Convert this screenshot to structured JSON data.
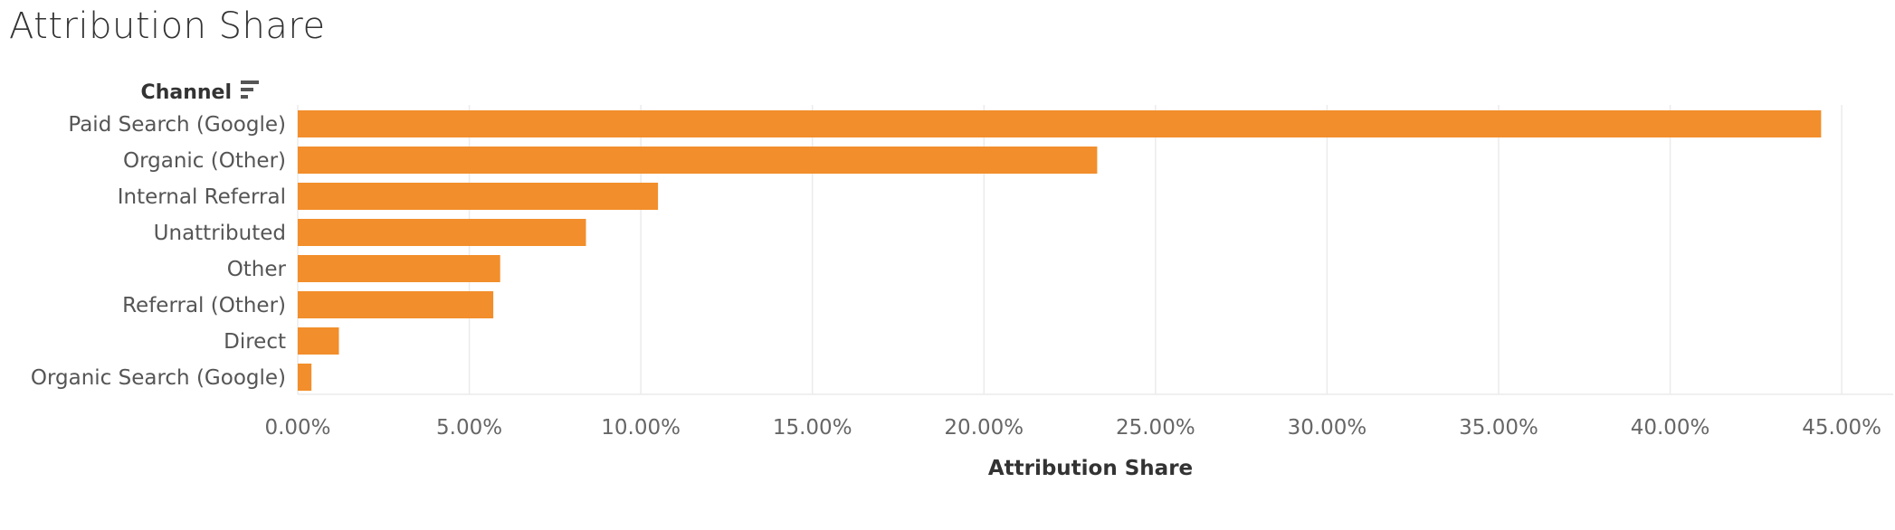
{
  "title": "Attribution Share",
  "colors": {
    "bar": "#F28E2B",
    "grid": "#EBEBEB",
    "text": "#555555"
  },
  "sort_icon": "sort-descending-icon",
  "chart_data": {
    "type": "bar",
    "orientation": "horizontal",
    "title": "Attribution Share",
    "ylabel": "Channel",
    "xlabel": "Attribution Share",
    "categories": [
      "Paid Search (Google)",
      "Organic (Other)",
      "Internal Referral",
      "Unattributed",
      "Other",
      "Referral (Other)",
      "Direct",
      "Organic Search (Google)"
    ],
    "values": [
      44.4,
      23.3,
      10.5,
      8.4,
      5.9,
      5.7,
      1.2,
      0.4
    ],
    "xlim": [
      0,
      46.5
    ],
    "ticks": [
      0,
      5,
      10,
      15,
      20,
      25,
      30,
      35,
      40,
      45
    ],
    "tick_labels": [
      "0.00%",
      "5.00%",
      "10.00%",
      "15.00%",
      "20.00%",
      "25.00%",
      "30.00%",
      "35.00%",
      "40.00%",
      "45.00%"
    ],
    "grid": true,
    "legend": "none"
  }
}
